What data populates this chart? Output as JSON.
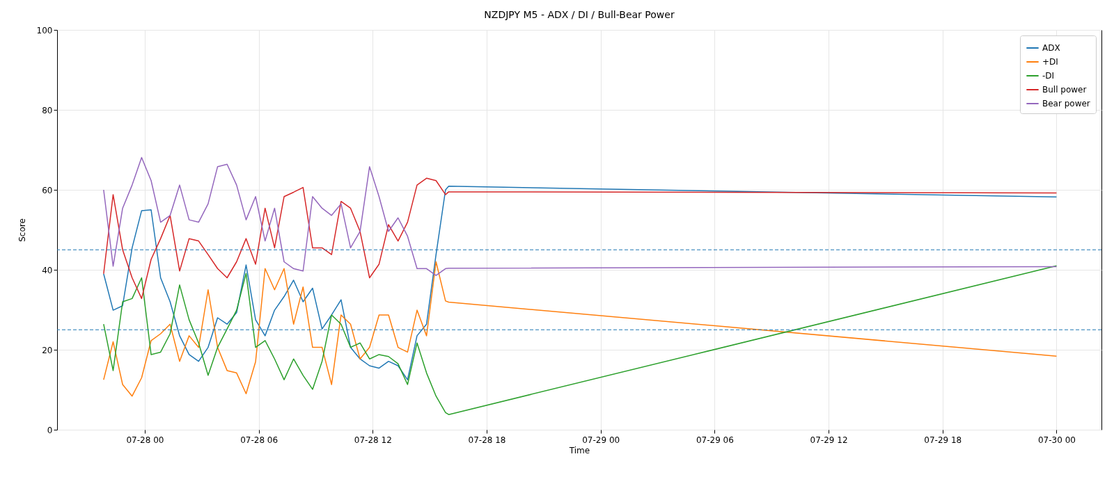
{
  "chart_data": {
    "type": "line",
    "title": "NZDJPY M5 - ADX / DI / Bull-Bear Power",
    "xlabel": "Time",
    "ylabel": "Score",
    "x": [
      "--07-27T21:50",
      "--07-27T22:20",
      "--07-27T22:50",
      "--07-27T23:20",
      "--07-27T23:50",
      "--07-28T00:20",
      "--07-28T00:50",
      "--07-28T01:20",
      "--07-28T01:50",
      "--07-28T02:20",
      "--07-28T02:50",
      "--07-28T03:20",
      "--07-28T03:50",
      "--07-28T04:20",
      "--07-28T04:50",
      "--07-28T05:20",
      "--07-28T05:50",
      "--07-28T06:20",
      "--07-28T06:50",
      "--07-28T07:20",
      "--07-28T07:50",
      "--07-28T08:20",
      "--07-28T08:50",
      "--07-28T09:20",
      "--07-28T09:50",
      "--07-28T10:20",
      "--07-28T10:50",
      "--07-28T11:20",
      "--07-28T11:50",
      "--07-28T12:20",
      "--07-28T12:50",
      "--07-28T13:20",
      "--07-28T13:50",
      "--07-28T14:20",
      "--07-28T14:50",
      "--07-28T15:20",
      "--07-28T15:50",
      "--07-28T16:00",
      "--07-30T00:00"
    ],
    "series": [
      {
        "name": "ADX",
        "color": "#1f77b4",
        "values": [
          39,
          29.9,
          31,
          45.5,
          54.8,
          55,
          38,
          32,
          23.5,
          18.8,
          17.1,
          20.6,
          28,
          26.4,
          29.3,
          41.2,
          27.5,
          23.5,
          29.9,
          33.3,
          37.4,
          32,
          35.4,
          25.2,
          28.7,
          32.5,
          20.6,
          17.7,
          16,
          15.4,
          17.1,
          16,
          12.5,
          23.5,
          26.4,
          43.8,
          60,
          60.9,
          58.2
        ]
      },
      {
        "name": "+DI",
        "color": "#ff7f0e",
        "values": [
          12.5,
          22,
          11.3,
          8.4,
          13,
          22.3,
          24,
          26.4,
          17.1,
          23.5,
          20.6,
          35,
          20.6,
          14.8,
          14.2,
          9,
          17,
          40.3,
          35,
          40.3,
          26.4,
          35.7,
          20.6,
          20.6,
          11.3,
          28.7,
          26.4,
          17.7,
          20.6,
          28.7,
          28.7,
          20.6,
          19.4,
          29.9,
          23.5,
          42,
          32.2,
          31.9,
          18.4
        ]
      },
      {
        "name": "-DI",
        "color": "#2ca02c",
        "values": [
          26.4,
          14.8,
          32,
          32.8,
          38,
          18.8,
          19.4,
          24,
          36.2,
          27.5,
          21.7,
          13.6,
          20.6,
          25.2,
          29.9,
          39.1,
          20.6,
          22.3,
          17.7,
          12.5,
          17.7,
          13.6,
          10.1,
          17.1,
          28.7,
          26.4,
          20.6,
          21.7,
          17.7,
          18.8,
          18.3,
          16.5,
          11.3,
          21.7,
          14.2,
          8.4,
          4.3,
          3.8,
          41
        ]
      },
      {
        "name": "Bull power",
        "color": "#d62728",
        "values": [
          39,
          58.8,
          45,
          38,
          32.8,
          42.6,
          47.8,
          53.6,
          39.7,
          47.8,
          47.2,
          43.8,
          40.3,
          38,
          42,
          47.8,
          41.4,
          55.4,
          45.5,
          58.3,
          59.4,
          60.6,
          45.5,
          45.5,
          43.8,
          57.1,
          55.4,
          49.6,
          38,
          41.4,
          51.3,
          47.2,
          51.9,
          61.2,
          62.9,
          62.3,
          58.8,
          59.5,
          59.2
        ]
      },
      {
        "name": "Bear power",
        "color": "#9467bd",
        "values": [
          60,
          40.9,
          55.4,
          61.2,
          68.1,
          62.3,
          51.9,
          53.6,
          61.2,
          52.5,
          51.9,
          56.5,
          65.8,
          66.4,
          61.2,
          52.5,
          58.3,
          47.2,
          55.4,
          42,
          40.3,
          39.7,
          58.3,
          55.4,
          53.6,
          56.5,
          45.5,
          49.6,
          65.8,
          58.3,
          49.6,
          53,
          48.4,
          40.3,
          40.3,
          38.6,
          40.3,
          40.4,
          40.8
        ]
      }
    ],
    "xlim": [
      "--07-27T19:23",
      "--07-30T02:22"
    ],
    "xticks": [
      {
        "value": "--07-28T00:00",
        "label": "07-28 00"
      },
      {
        "value": "--07-28T06:00",
        "label": "07-28 06"
      },
      {
        "value": "--07-28T12:00",
        "label": "07-28 12"
      },
      {
        "value": "--07-28T18:00",
        "label": "07-28 18"
      },
      {
        "value": "--07-29T00:00",
        "label": "07-29 00"
      },
      {
        "value": "--07-29T06:00",
        "label": "07-29 06"
      },
      {
        "value": "--07-29T12:00",
        "label": "07-29 12"
      },
      {
        "value": "--07-29T18:00",
        "label": "07-29 18"
      },
      {
        "value": "--07-30T00:00",
        "label": "07-30 00"
      }
    ],
    "ylim": [
      0,
      100
    ],
    "yticks": [
      0,
      20,
      40,
      60,
      80,
      100
    ],
    "ref_lines": [
      {
        "axis": "y",
        "value": 45,
        "color": "#1f77b4",
        "line_style": "dashed"
      },
      {
        "axis": "y",
        "value": 25,
        "color": "#1f77b4",
        "line_style": "dashed"
      }
    ],
    "grid": true,
    "legend": "top right",
    "line_style": "solid"
  }
}
